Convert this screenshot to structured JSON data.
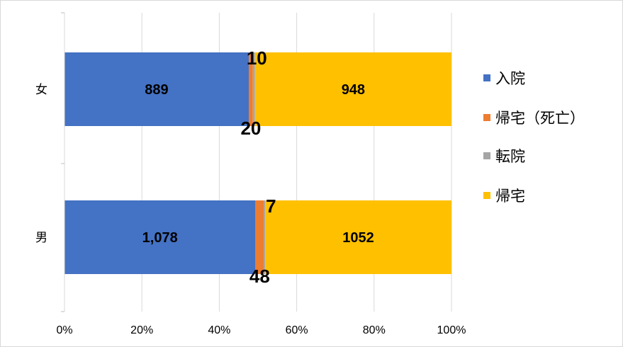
{
  "chart_data": {
    "type": "bar",
    "orientation": "horizontal",
    "stacked": "percent",
    "categories": [
      "女",
      "男"
    ],
    "series": [
      {
        "name": "入院",
        "color": "#4472C4",
        "values": [
          889,
          1078
        ],
        "labels": [
          "889",
          "1,078"
        ]
      },
      {
        "name": "帰宅（死亡）",
        "color": "#ED7D31",
        "values": [
          20,
          48
        ],
        "labels": [
          "20",
          "48"
        ]
      },
      {
        "name": "転院",
        "color": "#A5A5A5",
        "values": [
          10,
          7
        ],
        "labels": [
          "10",
          "7"
        ]
      },
      {
        "name": "帰宅",
        "color": "#FFC000",
        "values": [
          948,
          1052
        ],
        "labels": [
          "948",
          "1052"
        ]
      }
    ],
    "x_ticks": [
      "0%",
      "20%",
      "40%",
      "60%",
      "80%",
      "100%"
    ],
    "xlim": [
      0,
      100
    ],
    "grid": "vertical",
    "legend": "right"
  }
}
